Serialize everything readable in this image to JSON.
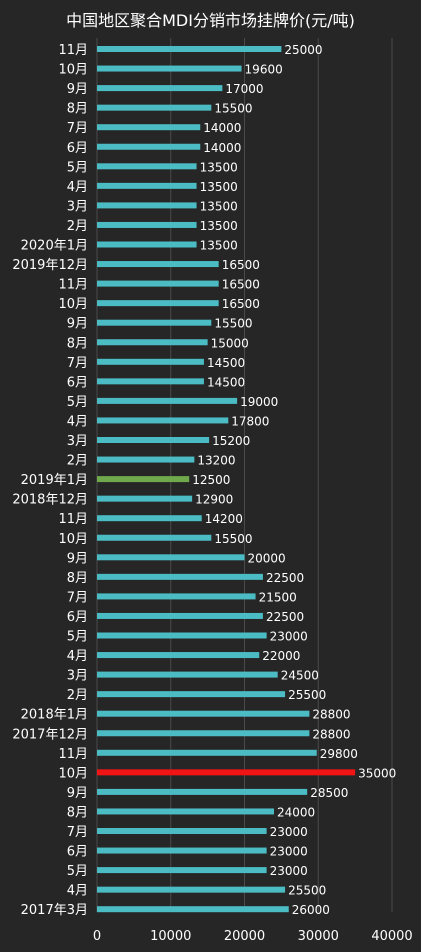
{
  "chart_data": {
    "type": "bar",
    "orientation": "horizontal",
    "title": "中国地区聚合MDI分销市场挂牌价(元/吨)",
    "categories": [
      "11月",
      "10月",
      "9月",
      "8月",
      "7月",
      "6月",
      "5月",
      "4月",
      "3月",
      "2月",
      "2020年1月",
      "2019年12月",
      "11月",
      "10月",
      "9月",
      "8月",
      "7月",
      "6月",
      "5月",
      "4月",
      "3月",
      "2月",
      "2019年1月",
      "2018年12月",
      "11月",
      "10月",
      "9月",
      "8月",
      "7月",
      "6月",
      "5月",
      "4月",
      "3月",
      "2月",
      "2018年1月",
      "2017年12月",
      "11月",
      "10月",
      "9月",
      "8月",
      "7月",
      "6月",
      "5月",
      "4月",
      "2017年3月"
    ],
    "values": [
      25000,
      19600,
      17000,
      15500,
      14000,
      14000,
      13500,
      13500,
      13500,
      13500,
      13500,
      16500,
      16500,
      16500,
      15500,
      15000,
      14500,
      14500,
      19000,
      17800,
      15200,
      13200,
      12500,
      12900,
      14200,
      15500,
      20000,
      22500,
      21500,
      22500,
      23000,
      22000,
      24500,
      25500,
      28800,
      28800,
      29800,
      35000,
      28500,
      24000,
      23000,
      23000,
      23000,
      25500,
      26000
    ],
    "data_labels": [
      "25000",
      "19600",
      "17000",
      "15500",
      "14000",
      "14000",
      "13500",
      "13500",
      "13500",
      "13500",
      "13500",
      "16500",
      "16500",
      "16500",
      "15500",
      "15000",
      "14500",
      "14500",
      "19000",
      "17800",
      "15200",
      "13200",
      "12500",
      "12900",
      "14200",
      "15500",
      "20000",
      "22500",
      "21500",
      "22500",
      "23000",
      "22000",
      "24500",
      "25500",
      "28800",
      "28800",
      "29800",
      "35000",
      "28500",
      "24000",
      "23000",
      "23000",
      "23000",
      "25500",
      "26000"
    ],
    "xlim": [
      0,
      40000
    ],
    "xticks": [
      "0",
      "10000",
      "20000",
      "30000",
      "40000"
    ],
    "grid": "vertical",
    "legend": "none",
    "colors": {
      "background": "#262626",
      "bar": "#4bbcc4",
      "highlight_low": "#70a84c",
      "highlight_high": "#f01414",
      "text": "#ffffff",
      "grid": "#4a4a4a"
    },
    "highlights": {
      "2019年1月": "highlight_low",
      "10月@2017": "highlight_high"
    },
    "highlight_indices": {
      "22": "highlight_low",
      "37": "highlight_high"
    }
  }
}
